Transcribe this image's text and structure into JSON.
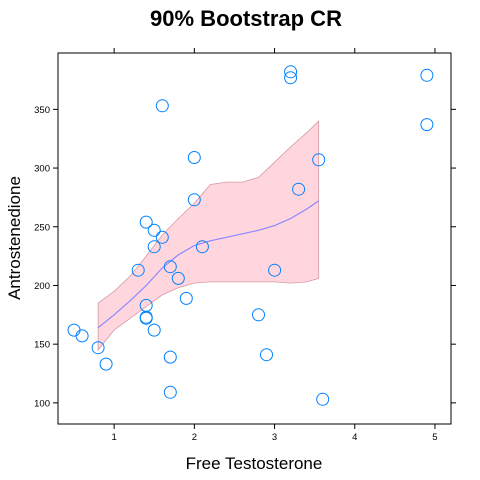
{
  "chart_data": {
    "type": "scatter",
    "title": "90% Bootstrap CR",
    "xlabel": "Free Testosterone",
    "ylabel": "Antrostenedione",
    "xlim": [
      0.3,
      5.2
    ],
    "ylim": [
      82,
      398
    ],
    "x_ticks": [
      1,
      2,
      3,
      4,
      5
    ],
    "y_ticks": [
      100,
      150,
      200,
      250,
      300,
      350
    ],
    "points": [
      {
        "x": 0.5,
        "y": 162
      },
      {
        "x": 0.6,
        "y": 157
      },
      {
        "x": 0.8,
        "y": 147
      },
      {
        "x": 0.9,
        "y": 133
      },
      {
        "x": 1.3,
        "y": 213
      },
      {
        "x": 1.4,
        "y": 254
      },
      {
        "x": 1.4,
        "y": 183
      },
      {
        "x": 1.4,
        "y": 173
      },
      {
        "x": 1.4,
        "y": 172
      },
      {
        "x": 1.5,
        "y": 247
      },
      {
        "x": 1.5,
        "y": 233
      },
      {
        "x": 1.5,
        "y": 162
      },
      {
        "x": 1.6,
        "y": 353
      },
      {
        "x": 1.6,
        "y": 241
      },
      {
        "x": 1.7,
        "y": 216
      },
      {
        "x": 1.7,
        "y": 139
      },
      {
        "x": 1.7,
        "y": 109
      },
      {
        "x": 1.8,
        "y": 206
      },
      {
        "x": 1.9,
        "y": 189
      },
      {
        "x": 2.0,
        "y": 309
      },
      {
        "x": 2.0,
        "y": 273
      },
      {
        "x": 2.1,
        "y": 233
      },
      {
        "x": 2.8,
        "y": 175
      },
      {
        "x": 2.9,
        "y": 141
      },
      {
        "x": 3.0,
        "y": 213
      },
      {
        "x": 3.2,
        "y": 382
      },
      {
        "x": 3.2,
        "y": 377
      },
      {
        "x": 3.3,
        "y": 282
      },
      {
        "x": 3.55,
        "y": 307
      },
      {
        "x": 3.6,
        "y": 103
      },
      {
        "x": 4.9,
        "y": 379
      },
      {
        "x": 4.9,
        "y": 337
      }
    ],
    "fit_line": {
      "x": [
        0.8,
        1.0,
        1.2,
        1.4,
        1.6,
        1.8,
        2.0,
        2.2,
        2.4,
        2.6,
        2.8,
        3.0,
        3.2,
        3.4,
        3.55
      ],
      "y": [
        164,
        175,
        187,
        200,
        215,
        226,
        234,
        238,
        241,
        244,
        247,
        251,
        257,
        265,
        272
      ]
    },
    "band": {
      "x": [
        0.8,
        1.0,
        1.2,
        1.4,
        1.6,
        1.8,
        2.0,
        2.2,
        2.4,
        2.6,
        2.8,
        3.0,
        3.2,
        3.4,
        3.55
      ],
      "upper": [
        185,
        195,
        208,
        225,
        243,
        257,
        270,
        286,
        288,
        288,
        292,
        305,
        318,
        330,
        340
      ],
      "lower": [
        145,
        162,
        172,
        182,
        192,
        198,
        202,
        203,
        203,
        203,
        203,
        203,
        202,
        203,
        206
      ]
    },
    "colors": {
      "points": "#0080ff",
      "line": "#8888ff",
      "band_fill": "#ffd6de",
      "band_edge": "#d59aa6",
      "axis": "#000000"
    }
  }
}
